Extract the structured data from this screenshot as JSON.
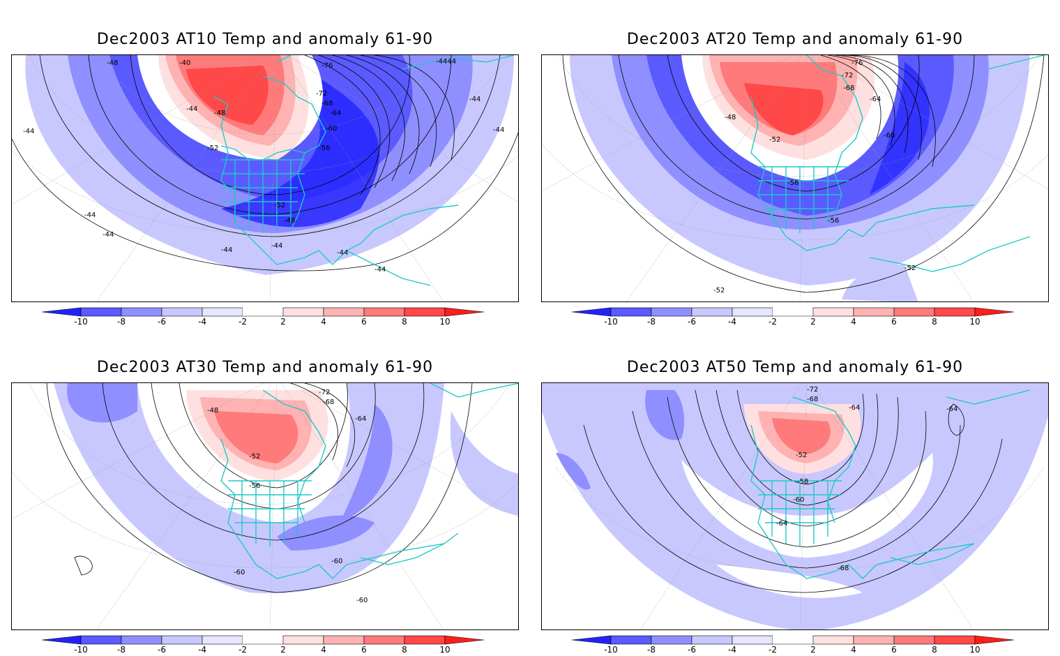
{
  "colors": {
    "neg": [
      "#2222ff",
      "#5a5aff",
      "#8f8fff",
      "#c8c8ff",
      "#e6e6ff"
    ],
    "pos": [
      "#ffe0e0",
      "#ffb2b2",
      "#ff7a7a",
      "#ff4848",
      "#ff1e1e"
    ],
    "coast": "#20c8c8",
    "contour": "#000000",
    "grid": "#9a9a9a"
  },
  "colorbar": {
    "labels": [
      "-10",
      "-8",
      "-6",
      "-4",
      "-2",
      "2",
      "4",
      "6",
      "8",
      "10"
    ]
  },
  "panels": [
    {
      "title": "Dec2003 AT10 Temp and anomaly 61-90",
      "labels": [
        "-40",
        "-44",
        "-48",
        "-48",
        "-52",
        "-52",
        "-56",
        "-60",
        "-64",
        "-68",
        "-72",
        "-76",
        "-4444",
        "-44",
        "-44",
        "-44",
        "-44",
        "-44",
        "-44",
        "-44",
        "-44",
        "-48",
        "-44"
      ]
    },
    {
      "title": "Dec2003 AT20 Temp and anomaly 61-90",
      "labels": [
        "-76",
        "-72",
        "-68",
        "-64",
        "-60",
        "-48",
        "-52",
        "-56",
        "-56",
        "-52",
        "-52"
      ]
    },
    {
      "title": "Dec2003 AT30 Temp and anomaly 61-90",
      "labels": [
        "-72",
        "-68",
        "-64",
        "-48",
        "-52",
        "-56",
        "-60",
        "-60",
        "-60"
      ]
    },
    {
      "title": "Dec2003 AT50 Temp and anomaly 61-90",
      "labels": [
        "-72",
        "-68",
        "-64",
        "-64",
        "-52",
        "-58",
        "-60",
        "-64",
        "-68"
      ]
    }
  ]
}
